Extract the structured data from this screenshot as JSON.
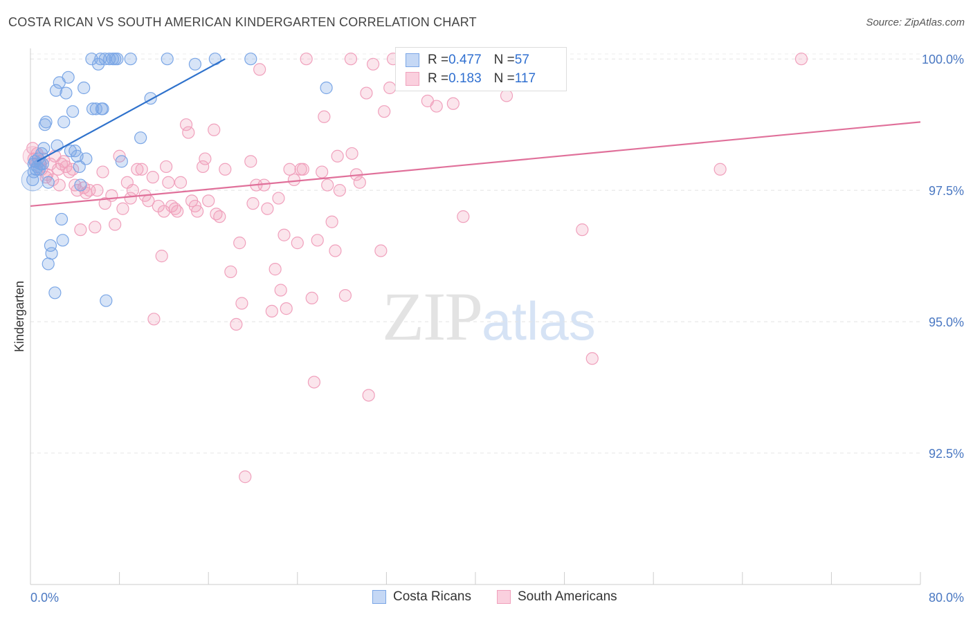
{
  "title": "COSTA RICAN VS SOUTH AMERICAN KINDERGARTEN CORRELATION CHART",
  "source": "Source: ZipAtlas.com",
  "watermark": {
    "zip": "ZIP",
    "atlas": "atlas"
  },
  "colors": {
    "blue": "#7aa6e6",
    "blue_line": "#2f72cc",
    "pink": "#f0a0bc",
    "pink_line": "#e0709a",
    "tick_text": "#4a78c2"
  },
  "legend": {
    "rows": [
      {
        "r_label": "R = ",
        "r_value": "0.477",
        "n_label": "N = ",
        "n_value": "57"
      },
      {
        "r_label": "R = ",
        "r_value": "0.183",
        "n_label": "N = ",
        "n_value": "117"
      }
    ]
  },
  "bottom_legend": {
    "blue": "Costa Ricans",
    "pink": "South Americans"
  },
  "chart_data": {
    "type": "scatter",
    "title": "COSTA RICAN VS SOUTH AMERICAN KINDERGARTEN CORRELATION CHART",
    "ylabel": "Kindergarten",
    "xlabel": "",
    "xlim": [
      0,
      80
    ],
    "ylim": [
      90.0,
      100.2
    ],
    "x_tick_labels": [
      "0.0%",
      "80.0%"
    ],
    "y_ticks": [
      92.5,
      95.0,
      97.5,
      100.0
    ],
    "y_tick_labels": [
      "92.5%",
      "95.0%",
      "97.5%",
      "100.0%"
    ],
    "series": [
      {
        "name": "Costa Ricans",
        "color": "#7aa6e6",
        "trend": {
          "x0": 0.6,
          "y0": 98.05,
          "x1": 17.5,
          "y1": 100.0
        },
        "points": [
          [
            0.2,
            97.7
          ],
          [
            0.3,
            97.85
          ],
          [
            0.5,
            97.9
          ],
          [
            0.6,
            97.95
          ],
          [
            0.9,
            98.0
          ],
          [
            1.0,
            98.2
          ],
          [
            1.2,
            98.3
          ],
          [
            1.3,
            98.75
          ],
          [
            1.4,
            98.8
          ],
          [
            1.6,
            97.65
          ],
          [
            1.8,
            96.45
          ],
          [
            1.9,
            96.3
          ],
          [
            1.6,
            96.1
          ],
          [
            2.2,
            95.55
          ],
          [
            2.3,
            99.4
          ],
          [
            2.4,
            98.35
          ],
          [
            2.6,
            99.55
          ],
          [
            2.8,
            96.95
          ],
          [
            2.9,
            96.55
          ],
          [
            3.0,
            98.8
          ],
          [
            3.2,
            99.35
          ],
          [
            3.4,
            99.65
          ],
          [
            3.6,
            98.25
          ],
          [
            3.8,
            99.0
          ],
          [
            4.0,
            98.25
          ],
          [
            4.2,
            98.15
          ],
          [
            4.4,
            97.95
          ],
          [
            4.5,
            97.6
          ],
          [
            4.8,
            99.45
          ],
          [
            5.0,
            98.1
          ],
          [
            5.5,
            100.0
          ],
          [
            5.6,
            99.05
          ],
          [
            5.9,
            99.05
          ],
          [
            6.1,
            99.9
          ],
          [
            6.3,
            100.0
          ],
          [
            6.4,
            99.05
          ],
          [
            6.5,
            99.05
          ],
          [
            6.7,
            100.0
          ],
          [
            6.8,
            95.4
          ],
          [
            7.1,
            100.0
          ],
          [
            7.4,
            100.0
          ],
          [
            7.6,
            100.0
          ],
          [
            7.8,
            100.0
          ],
          [
            8.2,
            98.05
          ],
          [
            9.0,
            100.0
          ],
          [
            9.9,
            98.5
          ],
          [
            10.8,
            99.25
          ],
          [
            12.3,
            100.0
          ],
          [
            14.8,
            99.9
          ],
          [
            16.6,
            100.0
          ],
          [
            19.8,
            100.0
          ],
          [
            26.6,
            99.45
          ],
          [
            0.4,
            98.05
          ],
          [
            0.7,
            98.1
          ],
          [
            1.1,
            98.0
          ],
          [
            0.8,
            97.9
          ],
          [
            0.3,
            98.0
          ]
        ]
      },
      {
        "name": "South Americans",
        "color": "#f0a0bc",
        "trend": {
          "x0": 0,
          "y0": 97.2,
          "x1": 80,
          "y1": 98.8
        },
        "points": [
          [
            0.2,
            98.3
          ],
          [
            0.3,
            98.1
          ],
          [
            0.5,
            98.0
          ],
          [
            0.8,
            98.05
          ],
          [
            1.0,
            97.9
          ],
          [
            1.2,
            98.1
          ],
          [
            1.5,
            97.8
          ],
          [
            1.8,
            98.0
          ],
          [
            2.0,
            97.7
          ],
          [
            2.2,
            98.15
          ],
          [
            2.5,
            97.9
          ],
          [
            2.8,
            98.0
          ],
          [
            3.0,
            98.05
          ],
          [
            3.2,
            97.95
          ],
          [
            3.5,
            97.85
          ],
          [
            3.8,
            97.9
          ],
          [
            4.0,
            97.6
          ],
          [
            4.2,
            97.5
          ],
          [
            4.5,
            96.75
          ],
          [
            4.8,
            97.55
          ],
          [
            5.0,
            97.45
          ],
          [
            5.3,
            97.5
          ],
          [
            5.8,
            96.8
          ],
          [
            6.0,
            97.5
          ],
          [
            6.5,
            97.85
          ],
          [
            6.7,
            97.25
          ],
          [
            7.3,
            97.4
          ],
          [
            7.6,
            96.85
          ],
          [
            8.0,
            98.15
          ],
          [
            8.3,
            97.15
          ],
          [
            8.7,
            97.65
          ],
          [
            9.0,
            97.35
          ],
          [
            9.2,
            97.5
          ],
          [
            9.6,
            97.9
          ],
          [
            10.0,
            97.9
          ],
          [
            10.3,
            97.4
          ],
          [
            10.6,
            97.3
          ],
          [
            11.0,
            97.75
          ],
          [
            11.1,
            95.05
          ],
          [
            11.5,
            97.2
          ],
          [
            11.8,
            96.25
          ],
          [
            12.0,
            97.1
          ],
          [
            12.2,
            97.95
          ],
          [
            12.4,
            97.65
          ],
          [
            12.7,
            97.2
          ],
          [
            13.0,
            97.15
          ],
          [
            13.2,
            97.1
          ],
          [
            13.5,
            97.65
          ],
          [
            14.0,
            98.75
          ],
          [
            14.2,
            98.6
          ],
          [
            14.5,
            97.3
          ],
          [
            14.8,
            97.2
          ],
          [
            15.0,
            97.1
          ],
          [
            15.5,
            97.95
          ],
          [
            15.7,
            98.1
          ],
          [
            16.0,
            97.3
          ],
          [
            16.5,
            98.65
          ],
          [
            16.7,
            97.05
          ],
          [
            17.0,
            97.0
          ],
          [
            17.5,
            97.9
          ],
          [
            18.0,
            95.95
          ],
          [
            18.5,
            94.95
          ],
          [
            18.8,
            96.5
          ],
          [
            19.0,
            95.35
          ],
          [
            19.3,
            92.05
          ],
          [
            19.8,
            98.05
          ],
          [
            20.0,
            97.25
          ],
          [
            20.3,
            97.6
          ],
          [
            20.6,
            99.8
          ],
          [
            21.0,
            97.6
          ],
          [
            21.3,
            97.15
          ],
          [
            21.7,
            95.2
          ],
          [
            22.0,
            96.0
          ],
          [
            22.3,
            97.35
          ],
          [
            22.5,
            95.6
          ],
          [
            22.8,
            96.65
          ],
          [
            23.0,
            95.25
          ],
          [
            23.3,
            97.9
          ],
          [
            23.7,
            97.7
          ],
          [
            24.0,
            96.5
          ],
          [
            24.3,
            97.9
          ],
          [
            24.5,
            97.9
          ],
          [
            24.8,
            100.0
          ],
          [
            25.3,
            95.45
          ],
          [
            25.5,
            93.85
          ],
          [
            25.8,
            96.55
          ],
          [
            26.2,
            97.85
          ],
          [
            26.4,
            98.9
          ],
          [
            26.7,
            97.6
          ],
          [
            27.1,
            96.9
          ],
          [
            27.4,
            96.35
          ],
          [
            27.6,
            98.15
          ],
          [
            27.8,
            97.5
          ],
          [
            28.3,
            95.5
          ],
          [
            28.8,
            100.0
          ],
          [
            28.9,
            98.2
          ],
          [
            29.3,
            97.8
          ],
          [
            29.6,
            97.65
          ],
          [
            30.2,
            99.35
          ],
          [
            30.4,
            93.6
          ],
          [
            30.8,
            99.9
          ],
          [
            31.5,
            96.35
          ],
          [
            31.8,
            99.0
          ],
          [
            32.3,
            99.45
          ],
          [
            32.6,
            100.0
          ],
          [
            35.7,
            99.2
          ],
          [
            36.5,
            99.1
          ],
          [
            38.0,
            99.15
          ],
          [
            38.9,
            97.0
          ],
          [
            41.5,
            99.9
          ],
          [
            42.8,
            99.3
          ],
          [
            43.2,
            99.95
          ],
          [
            49.6,
            96.75
          ],
          [
            50.5,
            94.3
          ],
          [
            62.0,
            97.9
          ],
          [
            69.3,
            100.0
          ],
          [
            0.6,
            98.2
          ],
          [
            1.4,
            97.75
          ],
          [
            2.6,
            97.6
          ]
        ]
      }
    ]
  }
}
